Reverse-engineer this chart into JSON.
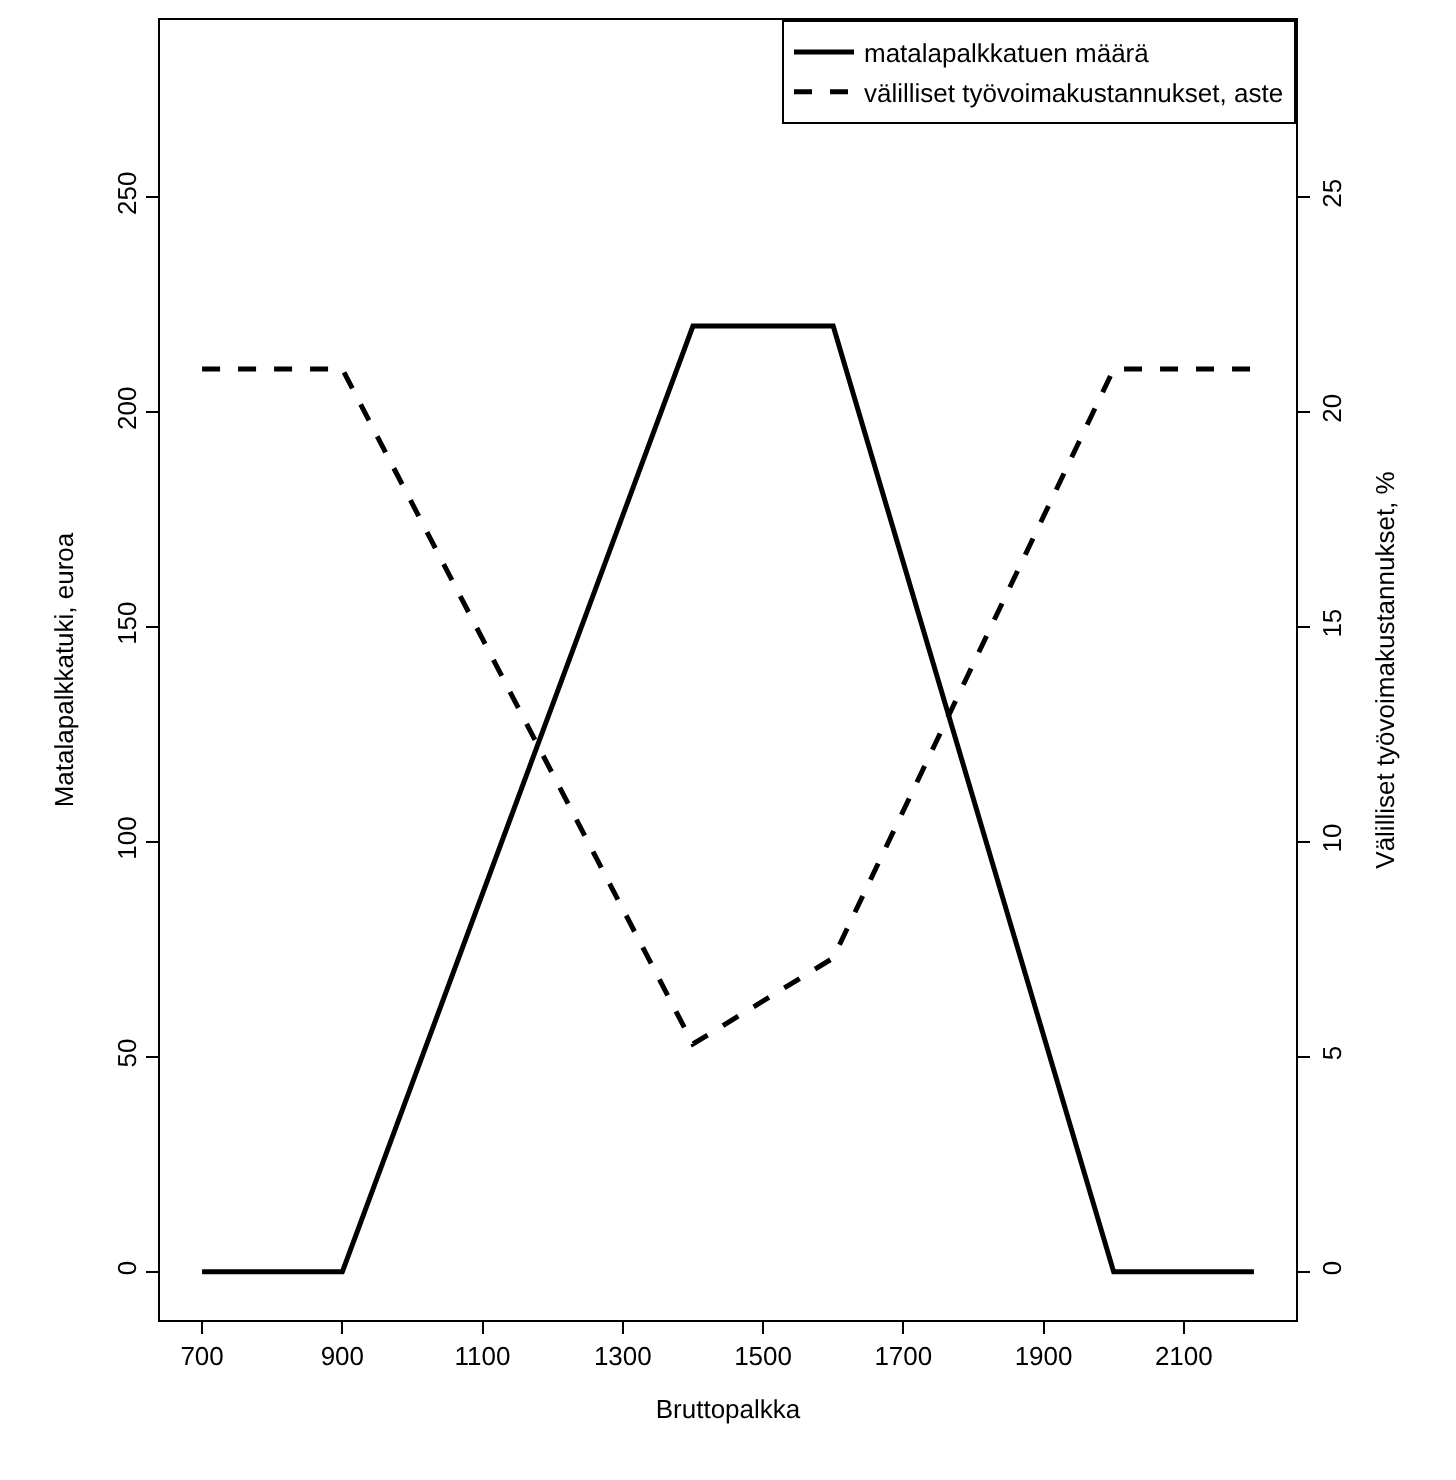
{
  "chart_data": {
    "type": "line",
    "xlabel": "Bruttopalkka",
    "ylabel": "Matalapalkkatuki, euroa",
    "y2label": "Välilliset työvoimakustannukset, %",
    "x": [
      700,
      900,
      1400,
      1600,
      2000,
      2200
    ],
    "series": [
      {
        "name": "matalapalkkatuen määrä",
        "color": "#000000",
        "line_style": "solid",
        "values": [
          0,
          0,
          220,
          220,
          0,
          0
        ]
      },
      {
        "name": "välilliset työvoimakustannukset, aste",
        "color": "#000000",
        "line_style": "dashed",
        "axis": "y2",
        "values": [
          21,
          21,
          5.3,
          7.3,
          21,
          21
        ]
      }
    ],
    "xlim": [
      640,
      2260
    ],
    "xticks": [
      700,
      900,
      1100,
      1300,
      1500,
      1700,
      1900,
      2100
    ],
    "ylim": [
      -11.2,
      291.2
    ],
    "yticks": [
      0,
      50,
      100,
      150,
      200,
      250
    ],
    "y2lim": [
      -1.12,
      29.12
    ],
    "y2ticks": [
      0,
      5,
      10,
      15,
      20,
      25
    ],
    "legend": "top right",
    "marker": "none"
  }
}
